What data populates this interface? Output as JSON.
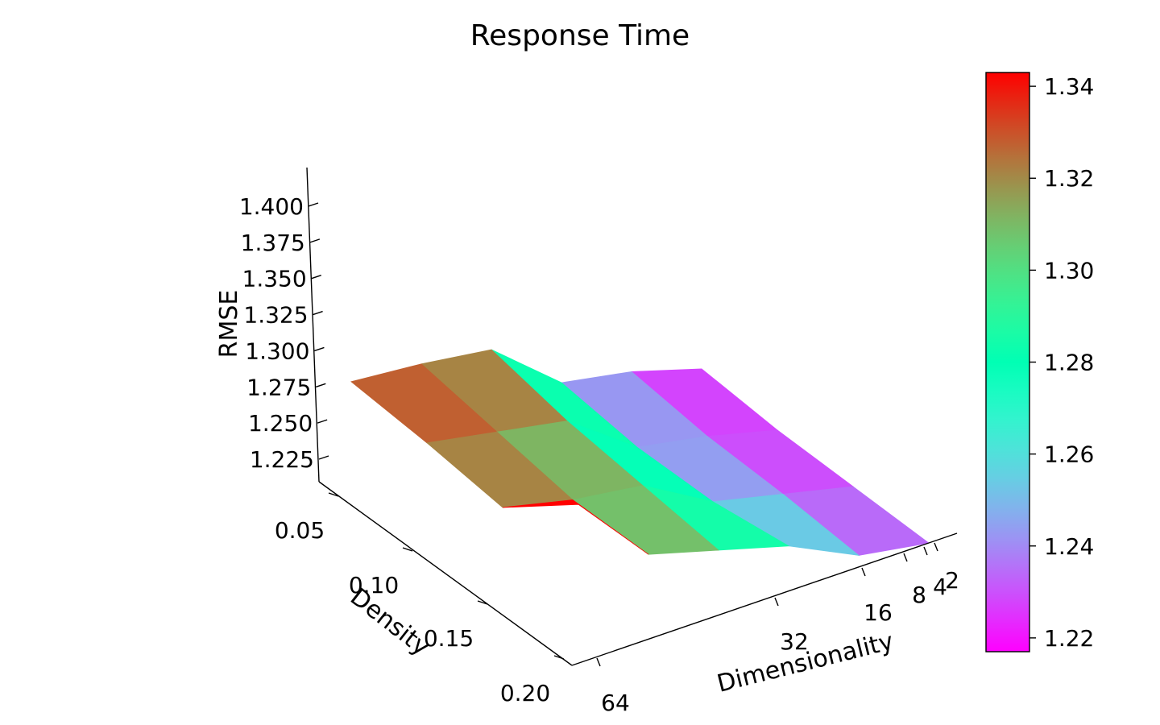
{
  "chart_data": {
    "type": "surface",
    "title": "Response Time",
    "xlabel": "Dimensionality",
    "ylabel": "Density",
    "zlabel": "RMSE",
    "x_ticks": [
      "64",
      "32",
      "16",
      "8",
      "4",
      "2"
    ],
    "y_ticks": [
      "0.05",
      "0.10",
      "0.15",
      "0.20"
    ],
    "z_ticks": [
      "1.225",
      "1.250",
      "1.275",
      "1.300",
      "1.325",
      "1.350",
      "1.375",
      "1.400"
    ],
    "colorbar_ticks": [
      "1.22",
      "1.24",
      "1.26",
      "1.28",
      "1.30",
      "1.32",
      "1.34"
    ],
    "colorbar_range": [
      1.217,
      1.343
    ],
    "colormap": "rainbow",
    "dimensionality": [
      64,
      32,
      16,
      8,
      4,
      2
    ],
    "density": [
      0.05,
      0.1,
      0.15,
      0.2
    ],
    "rmse": [
      [
        1.33,
        1.33,
        1.325,
        1.25,
        1.24,
        1.218
      ],
      [
        1.33,
        1.32,
        1.31,
        1.245,
        1.235,
        1.218
      ],
      [
        1.325,
        1.31,
        1.305,
        1.255,
        1.24,
        1.225
      ],
      [
        1.42,
        1.32,
        1.3,
        1.28,
        1.24,
        1.232
      ]
    ]
  }
}
